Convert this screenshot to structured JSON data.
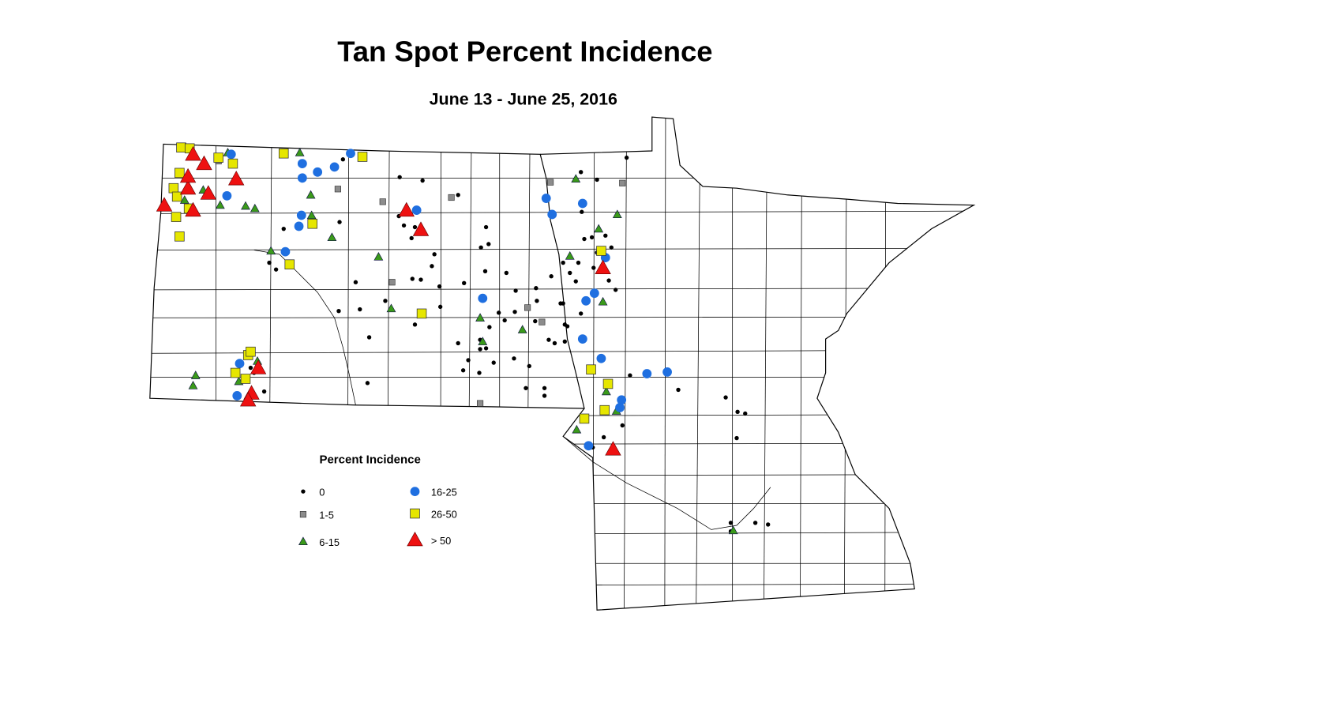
{
  "title": "Tan Spot Percent Incidence",
  "subtitle": "June 13 - June 25, 2016",
  "legend": {
    "title": "Percent Incidence",
    "items": [
      {
        "label": "0",
        "color": "#000000"
      },
      {
        "label": "1-5",
        "color": "#8c8c8c"
      },
      {
        "label": "6-15",
        "color": "#3a9a1a"
      },
      {
        "label": "16-25",
        "color": "#1f6fe0"
      },
      {
        "label": "26-50",
        "color": "#e6e600"
      },
      {
        "label": "> 50",
        "color": "#ee1111"
      }
    ]
  }
}
